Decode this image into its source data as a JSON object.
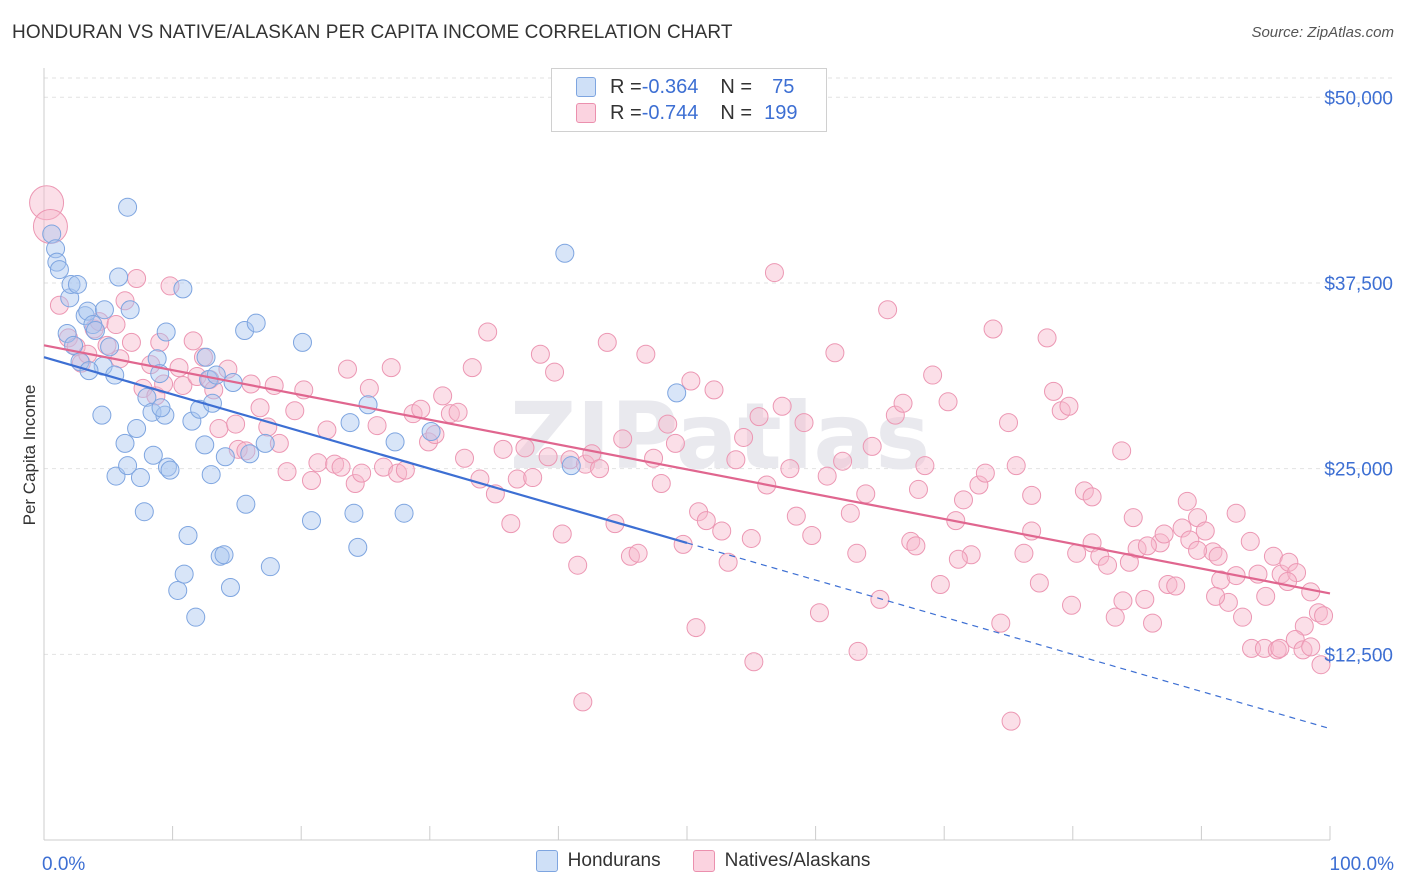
{
  "title": "HONDURAN VS NATIVE/ALASKAN PER CAPITA INCOME CORRELATION CHART",
  "source": "Source: ZipAtlas.com",
  "watermark": "ZIPatlas",
  "stats": [
    {
      "r_label": "R = ",
      "r_value": "-0.364",
      "n_label": "N = ",
      "n_value": "75",
      "color": "#a9c6ef"
    },
    {
      "r_label": "R = ",
      "r_value": "-0.744",
      "n_label": "N = ",
      "n_value": "199",
      "color": "#f6b8cc"
    }
  ],
  "legend": [
    {
      "label": "Hondurans",
      "color": "#a9c6ef"
    },
    {
      "label": "Natives/Alaskans",
      "color": "#f6b8cc"
    }
  ],
  "chart_data": {
    "type": "scatter",
    "title": "HONDURAN VS NATIVE/ALASKAN PER CAPITA INCOME CORRELATION CHART",
    "xlabel": "",
    "ylabel": "Per Capita Income",
    "xlim": [
      0,
      100
    ],
    "ylim": [
      0,
      51500
    ],
    "x_tick_labels": [
      "0.0%",
      "100.0%"
    ],
    "y_ticks": [
      12500,
      25000,
      37500,
      50000
    ],
    "y_tick_labels": [
      "$12,500",
      "$25,000",
      "$37,500",
      "$50,000"
    ],
    "grid": true,
    "legend_position": "bottom",
    "colors": {
      "blue": "#3d6fd3",
      "pink": "#e0668f",
      "blue_fill": "#a9c6ef",
      "pink_fill": "#f6b8cc"
    },
    "series": [
      {
        "name": "Hondurans",
        "color": "#3d6fd3",
        "trend": {
          "x0": 0,
          "y0": 32500,
          "x1": 50,
          "y1": 20000,
          "dashed_to_x": 100,
          "dashed_to_y": 7500
        },
        "points": [
          [
            0.6,
            40800
          ],
          [
            0.9,
            39800
          ],
          [
            1.0,
            38900
          ],
          [
            1.2,
            38400
          ],
          [
            1.8,
            34100
          ],
          [
            2.0,
            36500
          ],
          [
            2.1,
            37400
          ],
          [
            2.3,
            33300
          ],
          [
            2.6,
            37400
          ],
          [
            2.8,
            32200
          ],
          [
            3.2,
            35300
          ],
          [
            3.4,
            35600
          ],
          [
            3.8,
            34700
          ],
          [
            4.0,
            34300
          ],
          [
            4.5,
            28600
          ],
          [
            4.6,
            31900
          ],
          [
            4.7,
            35700
          ],
          [
            5.1,
            33200
          ],
          [
            5.5,
            31300
          ],
          [
            5.6,
            24500
          ],
          [
            5.8,
            37900
          ],
          [
            6.3,
            26700
          ],
          [
            6.5,
            25200
          ],
          [
            6.7,
            35700
          ],
          [
            7.2,
            27700
          ],
          [
            7.5,
            24400
          ],
          [
            7.8,
            22100
          ],
          [
            8.0,
            29800
          ],
          [
            8.4,
            28800
          ],
          [
            8.5,
            25900
          ],
          [
            8.8,
            32400
          ],
          [
            9.0,
            31400
          ],
          [
            9.4,
            28600
          ],
          [
            9.5,
            34200
          ],
          [
            9.6,
            25100
          ],
          [
            9.8,
            24900
          ],
          [
            10.4,
            16800
          ],
          [
            10.8,
            37100
          ],
          [
            10.9,
            17900
          ],
          [
            11.2,
            20500
          ],
          [
            11.5,
            28200
          ],
          [
            11.8,
            15000
          ],
          [
            12.1,
            29000
          ],
          [
            12.5,
            26600
          ],
          [
            12.6,
            32500
          ],
          [
            12.8,
            31000
          ],
          [
            13.1,
            29400
          ],
          [
            13.4,
            31300
          ],
          [
            13.7,
            19100
          ],
          [
            14.0,
            19200
          ],
          [
            14.1,
            25800
          ],
          [
            14.5,
            17000
          ],
          [
            14.7,
            30800
          ],
          [
            15.6,
            34300
          ],
          [
            15.7,
            22600
          ],
          [
            16.0,
            26000
          ],
          [
            16.5,
            34800
          ],
          [
            17.2,
            26700
          ],
          [
            17.6,
            18400
          ],
          [
            20.1,
            33500
          ],
          [
            20.8,
            21500
          ],
          [
            23.8,
            28100
          ],
          [
            24.1,
            22000
          ],
          [
            24.4,
            19700
          ],
          [
            25.2,
            29300
          ],
          [
            27.3,
            26800
          ],
          [
            28.0,
            22000
          ],
          [
            30.1,
            27500
          ],
          [
            40.5,
            39500
          ],
          [
            41.0,
            25200
          ],
          [
            49.2,
            30100
          ],
          [
            6.5,
            42600
          ],
          [
            9.1,
            29100
          ],
          [
            13.0,
            24600
          ],
          [
            3.5,
            31600
          ]
        ]
      },
      {
        "name": "Natives/Alaskans",
        "color": "#e0668f",
        "trend": {
          "x0": 0,
          "y0": 33300,
          "x1": 100,
          "y1": 16600
        },
        "points": [
          [
            0.2,
            42900
          ],
          [
            0.5,
            41300
          ],
          [
            1.2,
            36000
          ],
          [
            1.9,
            33800
          ],
          [
            2.5,
            33200
          ],
          [
            2.9,
            32100
          ],
          [
            3.4,
            32700
          ],
          [
            3.9,
            34400
          ],
          [
            4.3,
            34900
          ],
          [
            4.9,
            33300
          ],
          [
            5.6,
            34700
          ],
          [
            5.9,
            32400
          ],
          [
            6.3,
            36300
          ],
          [
            6.8,
            33500
          ],
          [
            7.2,
            37800
          ],
          [
            7.7,
            30400
          ],
          [
            8.3,
            32000
          ],
          [
            8.7,
            29900
          ],
          [
            9.0,
            33500
          ],
          [
            9.3,
            30700
          ],
          [
            9.8,
            37300
          ],
          [
            10.5,
            31800
          ],
          [
            10.8,
            30600
          ],
          [
            11.6,
            33600
          ],
          [
            11.9,
            31200
          ],
          [
            12.4,
            32500
          ],
          [
            12.9,
            31000
          ],
          [
            13.2,
            30300
          ],
          [
            13.6,
            27700
          ],
          [
            14.3,
            31700
          ],
          [
            14.9,
            28000
          ],
          [
            15.1,
            26300
          ],
          [
            15.7,
            26200
          ],
          [
            16.1,
            30700
          ],
          [
            16.8,
            29100
          ],
          [
            17.4,
            27800
          ],
          [
            17.9,
            30600
          ],
          [
            18.3,
            26700
          ],
          [
            18.9,
            24800
          ],
          [
            19.5,
            28900
          ],
          [
            20.2,
            30300
          ],
          [
            20.8,
            24200
          ],
          [
            21.3,
            25400
          ],
          [
            22.0,
            27600
          ],
          [
            22.6,
            25300
          ],
          [
            23.1,
            25100
          ],
          [
            23.6,
            31700
          ],
          [
            24.2,
            24000
          ],
          [
            24.7,
            24700
          ],
          [
            25.3,
            30400
          ],
          [
            25.9,
            27900
          ],
          [
            26.4,
            25100
          ],
          [
            27.0,
            31800
          ],
          [
            27.5,
            24700
          ],
          [
            28.1,
            24900
          ],
          [
            28.7,
            28700
          ],
          [
            29.3,
            29000
          ],
          [
            29.9,
            26800
          ],
          [
            30.4,
            27300
          ],
          [
            31.0,
            29900
          ],
          [
            31.6,
            28700
          ],
          [
            32.2,
            28800
          ],
          [
            32.7,
            25700
          ],
          [
            33.3,
            31800
          ],
          [
            33.9,
            24300
          ],
          [
            34.5,
            34200
          ],
          [
            35.1,
            23300
          ],
          [
            35.7,
            26300
          ],
          [
            36.3,
            21300
          ],
          [
            36.8,
            24300
          ],
          [
            37.4,
            26400
          ],
          [
            38.0,
            24400
          ],
          [
            38.6,
            32700
          ],
          [
            39.2,
            25800
          ],
          [
            39.7,
            31500
          ],
          [
            40.3,
            20600
          ],
          [
            40.9,
            25600
          ],
          [
            41.5,
            18500
          ],
          [
            42.1,
            25300
          ],
          [
            42.6,
            26000
          ],
          [
            43.2,
            25000
          ],
          [
            43.8,
            33500
          ],
          [
            44.4,
            21300
          ],
          [
            45.0,
            27000
          ],
          [
            45.6,
            19100
          ],
          [
            46.2,
            19300
          ],
          [
            46.8,
            32700
          ],
          [
            47.4,
            25700
          ],
          [
            48.0,
            24000
          ],
          [
            48.5,
            28000
          ],
          [
            49.1,
            26700
          ],
          [
            49.7,
            19900
          ],
          [
            50.3,
            30900
          ],
          [
            50.9,
            22100
          ],
          [
            51.5,
            21500
          ],
          [
            52.1,
            30300
          ],
          [
            52.7,
            20800
          ],
          [
            53.2,
            18700
          ],
          [
            53.8,
            25600
          ],
          [
            54.4,
            27100
          ],
          [
            55.0,
            20300
          ],
          [
            55.6,
            28500
          ],
          [
            56.2,
            23900
          ],
          [
            56.8,
            38200
          ],
          [
            57.4,
            29200
          ],
          [
            58.0,
            25000
          ],
          [
            58.5,
            21800
          ],
          [
            59.1,
            28100
          ],
          [
            59.7,
            20500
          ],
          [
            60.3,
            15300
          ],
          [
            60.9,
            24500
          ],
          [
            61.5,
            32800
          ],
          [
            62.1,
            25500
          ],
          [
            62.7,
            22000
          ],
          [
            63.2,
            19300
          ],
          [
            63.9,
            23300
          ],
          [
            64.4,
            26500
          ],
          [
            65.0,
            16200
          ],
          [
            65.6,
            35700
          ],
          [
            66.2,
            28600
          ],
          [
            66.8,
            29400
          ],
          [
            67.4,
            20100
          ],
          [
            68.0,
            23600
          ],
          [
            68.5,
            25200
          ],
          [
            69.1,
            31300
          ],
          [
            69.7,
            17200
          ],
          [
            70.3,
            29500
          ],
          [
            70.9,
            21500
          ],
          [
            71.5,
            22900
          ],
          [
            72.1,
            19200
          ],
          [
            72.7,
            23900
          ],
          [
            73.2,
            24700
          ],
          [
            73.8,
            34400
          ],
          [
            74.4,
            14600
          ],
          [
            75.0,
            28100
          ],
          [
            75.6,
            25200
          ],
          [
            76.2,
            19300
          ],
          [
            76.8,
            23200
          ],
          [
            77.4,
            17300
          ],
          [
            78.0,
            33800
          ],
          [
            78.5,
            30200
          ],
          [
            79.1,
            28900
          ],
          [
            79.7,
            29200
          ],
          [
            80.3,
            19300
          ],
          [
            80.9,
            23500
          ],
          [
            81.5,
            20000
          ],
          [
            82.1,
            19100
          ],
          [
            82.7,
            18500
          ],
          [
            83.3,
            15000
          ],
          [
            83.8,
            26200
          ],
          [
            84.4,
            18700
          ],
          [
            85.0,
            19600
          ],
          [
            85.6,
            16200
          ],
          [
            86.2,
            14600
          ],
          [
            86.8,
            20000
          ],
          [
            87.4,
            17200
          ],
          [
            88.0,
            17100
          ],
          [
            88.5,
            21000
          ],
          [
            89.1,
            20200
          ],
          [
            89.7,
            21700
          ],
          [
            90.3,
            20800
          ],
          [
            90.9,
            19400
          ],
          [
            91.5,
            17500
          ],
          [
            92.1,
            16000
          ],
          [
            92.7,
            22000
          ],
          [
            93.2,
            15000
          ],
          [
            93.8,
            20100
          ],
          [
            94.4,
            17900
          ],
          [
            95.0,
            16400
          ],
          [
            95.6,
            19100
          ],
          [
            96.2,
            17900
          ],
          [
            96.8,
            18700
          ],
          [
            97.4,
            18000
          ],
          [
            98.0,
            14400
          ],
          [
            98.5,
            16700
          ],
          [
            99.1,
            15300
          ],
          [
            99.5,
            15100
          ],
          [
            55.2,
            12000
          ],
          [
            75.2,
            8000
          ],
          [
            41.9,
            9300
          ],
          [
            50.7,
            14300
          ],
          [
            63.3,
            12700
          ],
          [
            67.8,
            19800
          ],
          [
            71.1,
            18900
          ],
          [
            76.8,
            20800
          ],
          [
            79.9,
            15800
          ],
          [
            81.5,
            23100
          ],
          [
            83.9,
            16100
          ],
          [
            84.7,
            21700
          ],
          [
            85.8,
            19800
          ],
          [
            87.1,
            20600
          ],
          [
            88.9,
            22800
          ],
          [
            89.7,
            19500
          ],
          [
            91.1,
            16400
          ],
          [
            91.3,
            19100
          ],
          [
            92.7,
            17800
          ],
          [
            93.9,
            12900
          ],
          [
            94.9,
            12900
          ],
          [
            95.9,
            12800
          ],
          [
            96.1,
            12900
          ],
          [
            96.7,
            17400
          ],
          [
            97.3,
            13500
          ],
          [
            97.9,
            12800
          ],
          [
            98.5,
            13000
          ],
          [
            99.3,
            11800
          ]
        ]
      }
    ]
  }
}
